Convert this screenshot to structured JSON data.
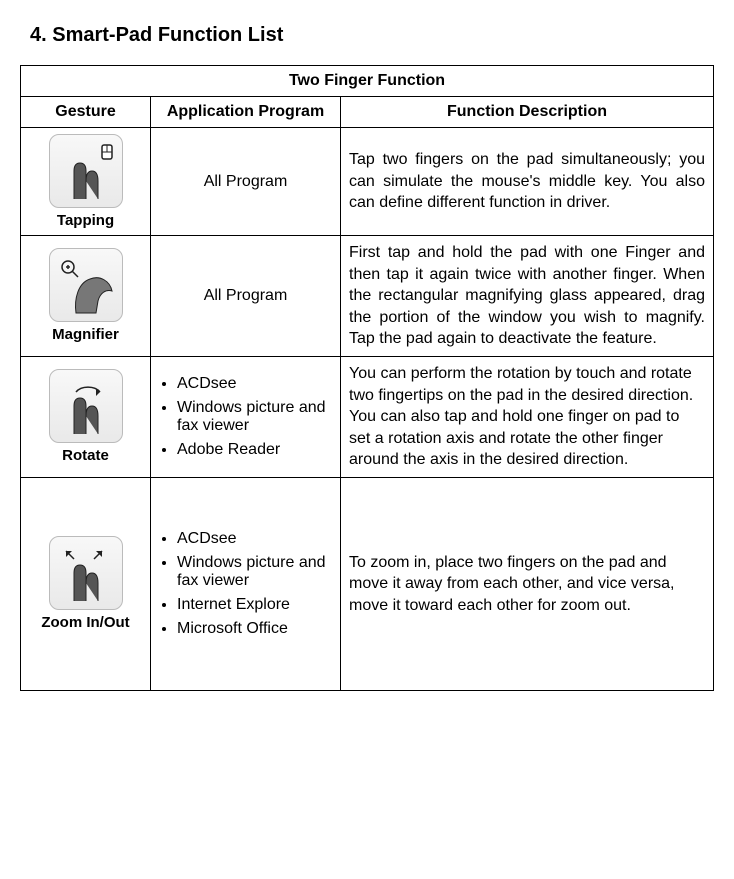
{
  "section_title": "4. Smart-Pad Function List",
  "table": {
    "group_header": "Two Finger Function",
    "columns": [
      "Gesture",
      "Application Program",
      "Function Description"
    ],
    "rows": [
      {
        "gesture": "Tapping",
        "icon": "tapping-icon",
        "program_mode": "single",
        "program_single": "All Program",
        "program_list": [],
        "desc_mode": "justify",
        "description": "Tap two fingers on the pad simultaneously; you can simulate the mouse's middle key. You also can define different function in driver."
      },
      {
        "gesture": "Magnifier",
        "icon": "magnifier-icon",
        "program_mode": "single",
        "program_single": "All Program",
        "program_list": [],
        "desc_mode": "justify",
        "description": "First tap and hold the pad with one Finger and then tap it again twice with another finger. When the rectangular magnifying glass appeared, drag the portion of the window you wish to magnify. Tap the pad again to deactivate the feature."
      },
      {
        "gesture": "Rotate",
        "icon": "rotate-icon",
        "program_mode": "list",
        "program_single": "",
        "program_list": [
          "ACDsee",
          "Windows picture and fax viewer",
          "Adobe Reader"
        ],
        "desc_mode": "left",
        "description": "You can perform the rotation by touch and rotate two fingertips on the pad in the desired direction. You can also tap and hold one finger on pad to set a rotation axis and rotate the other finger around the axis in the desired direction."
      },
      {
        "gesture": "Zoom In/Out",
        "icon": "zoom-icon",
        "program_mode": "list",
        "program_single": "",
        "program_list": [
          "ACDsee",
          "Windows picture and fax viewer",
          "Internet Explore",
          "Microsoft Office"
        ],
        "desc_mode": "left",
        "description": "To zoom in, place two fingers on the pad and move it away from each other, and vice versa, move it toward each other for zoom out."
      }
    ]
  },
  "icons": {
    "tapping-icon": {
      "svg": "<svg width='60' height='60' viewBox='0 0 60 60'><rect x='46' y='4' width='10' height='14' rx='2' fill='#fff' stroke='#222' stroke-width='1.5'/><line x1='51' y1='4' x2='51' y2='11' stroke='#222' stroke-width='1'/><line x1='46' y1='11' x2='56' y2='11' stroke='#222' stroke-width='1'/><path d='M18 58 L18 30 Q18 22 24 22 Q30 22 30 30 L30 58 M30 40 Q30 30 36 30 Q42 30 42 40 L42 58' fill='#555' stroke='#222' stroke-width='1'/></svg>"
    },
    "magnifier-icon": {
      "svg": "<svg width='60' height='60' viewBox='0 0 60 60'><circle cx='12' cy='12' r='6' fill='none' stroke='#222' stroke-width='1.5'/><line x1='16' y1='16' x2='22' y2='22' stroke='#222' stroke-width='1.5'/><line x1='10' y1='12' x2='14' y2='12' stroke='#222' stroke-width='1.5'/><line x1='12' y1='10' x2='12' y2='14' stroke='#222' stroke-width='1.5'/><path d='M20 58 C18 44 22 28 34 24 C44 20 54 26 56 36 C50 34 44 38 42 46 L40 58 Z' fill='#777' stroke='#222' stroke-width='1'/></svg>"
    },
    "rotate-icon": {
      "svg": "<svg width='60' height='60' viewBox='0 0 60 60'><path d='M20 16 A14 10 0 0 1 44 16' fill='none' stroke='#222' stroke-width='1.5'/><polygon points='44,16 40,12 40,20' fill='#222'/><path d='M18 58 L18 30 Q18 22 24 22 Q30 22 30 30 L30 58 M30 40 Q30 30 36 30 Q42 30 42 40 L42 58' fill='#555' stroke='#222' stroke-width='1'/></svg>"
    },
    "zoom-icon": {
      "svg": "<svg width='60' height='60' viewBox='0 0 60 60'><line x1='18' y1='16' x2='10' y2='8' stroke='#222' stroke-width='1.5'/><polygon points='10,8 16,8 10,14' fill='#222'/><line x1='38' y1='16' x2='46' y2='8' stroke='#222' stroke-width='1.5'/><polygon points='46,8 40,8 46,14' fill='#222'/><path d='M18 58 L18 30 Q18 22 24 22 Q30 22 30 30 L30 58 M30 40 Q30 30 36 30 Q42 30 42 40 L42 58' fill='#555' stroke='#222' stroke-width='1'/></svg>"
    }
  }
}
